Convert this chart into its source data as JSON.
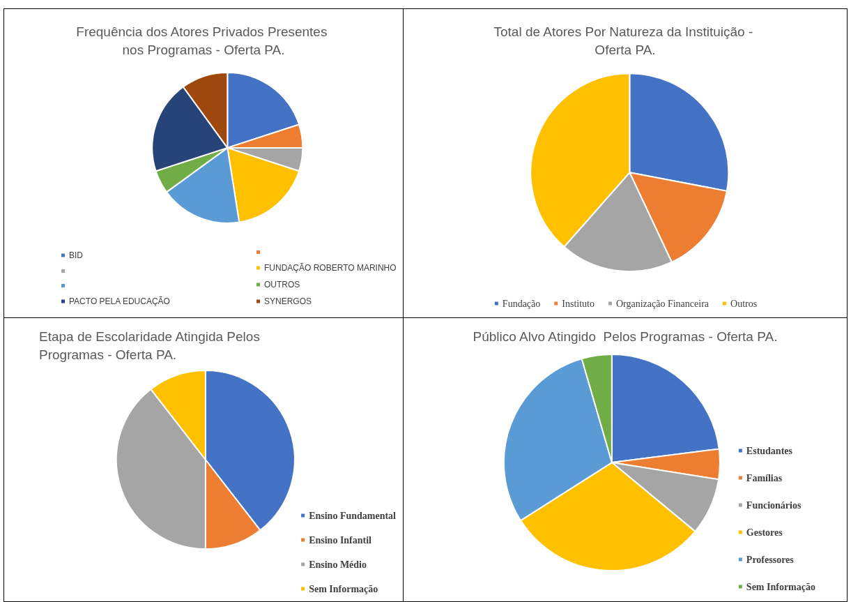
{
  "chart_data": [
    {
      "type": "pie",
      "title": "Frequência dos Atores Privados Presentes nos Programas - Oferta PA.",
      "categories": [
        "BID",
        null,
        null,
        "FUNDAÇÃO ROBERTO MARINHO",
        null,
        "OUTROS",
        "PACTO PELA EDUCAÇÃO",
        "SYNERGOS"
      ],
      "values": [
        20,
        5,
        5,
        17.5,
        17.5,
        5,
        20,
        10
      ],
      "colors": [
        "#4472c4",
        "#ed7d31",
        "#a5a5a5",
        "#ffc000",
        "#5b9bd5",
        "#70ad47",
        "#264478",
        "#9e480e"
      ],
      "legend": "bottom"
    },
    {
      "type": "pie",
      "title": "Total de Atores Por Natureza da Instituição - Oferta PA.",
      "categories": [
        "Fundação",
        "Instituto",
        "Organização Financeira",
        "Outros"
      ],
      "values": [
        28,
        15,
        18.5,
        38.5
      ],
      "colors": [
        "#4472c4",
        "#ed7d31",
        "#a5a5a5",
        "#ffc000"
      ],
      "legend": "bottom"
    },
    {
      "type": "pie",
      "title": "Etapa de Escolaridade Atingida Pelos Programas - Oferta PA.",
      "categories": [
        "Ensino Fundamental",
        "Ensino Infantil",
        "Ensino Médio",
        "Sem Informação"
      ],
      "values": [
        39.5,
        10.5,
        39.5,
        10.5
      ],
      "colors": [
        "#4472c4",
        "#ed7d31",
        "#a5a5a5",
        "#ffc000"
      ],
      "legend": "bottom right"
    },
    {
      "type": "pie",
      "title": "Público Alvo Atingido  Pelos Programas - Oferta PA.",
      "categories": [
        "Estudantes",
        "Famílias",
        "Funcionários",
        "Gestores",
        "Professores",
        "Sem Informação"
      ],
      "values": [
        23,
        4.5,
        8.5,
        30,
        29.5,
        4.5
      ],
      "colors": [
        "#4472c4",
        "#ed7d31",
        "#a5a5a5",
        "#ffc000",
        "#5b9bd5",
        "#70ad47"
      ],
      "legend": "right"
    }
  ]
}
